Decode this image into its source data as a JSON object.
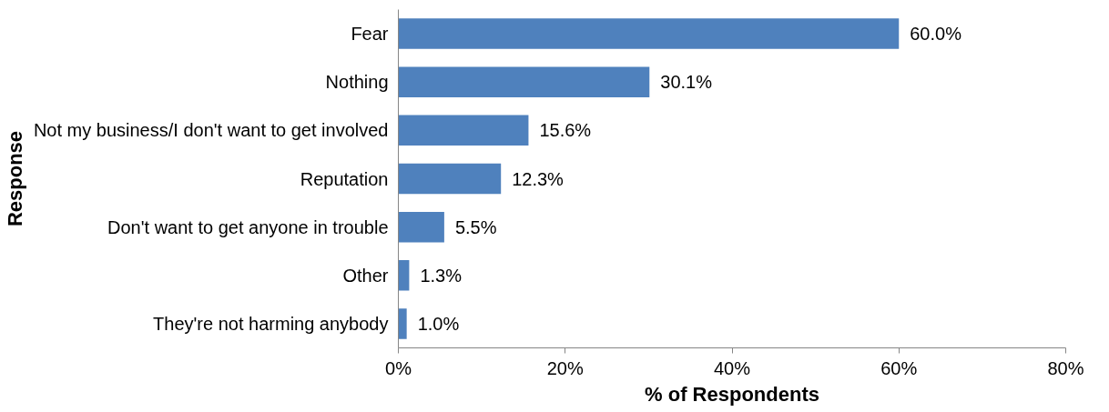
{
  "chart_data": {
    "type": "bar",
    "orientation": "horizontal",
    "xlabel": "% of Respondents",
    "ylabel": "Response",
    "categories": [
      "Fear",
      "Nothing",
      "Not my business/I don't want to get involved",
      "Reputation",
      "Don't want to get anyone in trouble",
      "Other",
      "They're not harming anybody"
    ],
    "values": [
      60.0,
      30.1,
      15.6,
      12.3,
      5.5,
      1.3,
      1.0
    ],
    "value_labels": [
      "60.0%",
      "30.1%",
      "15.6%",
      "12.3%",
      "5.5%",
      "1.3%",
      "1.0%"
    ],
    "color": "#4f81bd",
    "xlim": [
      0,
      80
    ],
    "xticks": [
      {
        "value": 0,
        "label": "0%"
      },
      {
        "value": 20,
        "label": "20%"
      },
      {
        "value": 40,
        "label": "40%"
      },
      {
        "value": 60,
        "label": "60%"
      },
      {
        "value": 80,
        "label": "80%"
      }
    ],
    "grid": false
  }
}
